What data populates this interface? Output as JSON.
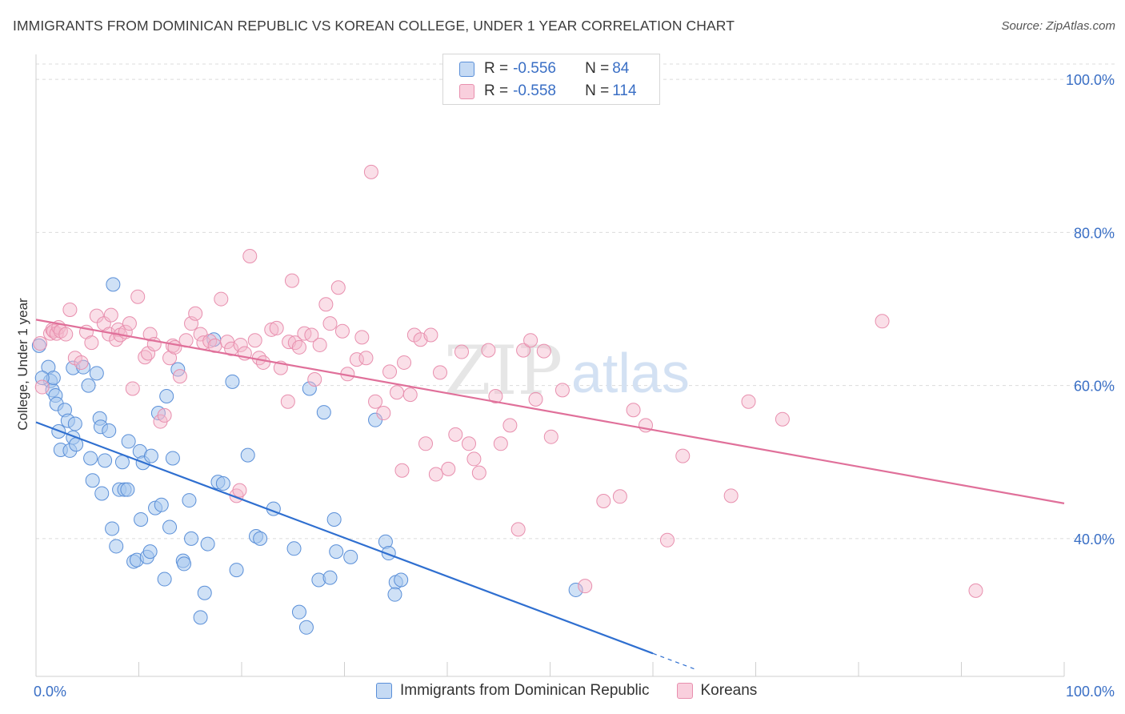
{
  "header": {
    "title": "IMMIGRANTS FROM DOMINICAN REPUBLIC VS KOREAN COLLEGE, UNDER 1 YEAR CORRELATION CHART",
    "source": "Source: ZipAtlas.com"
  },
  "legend": {
    "rows": [
      {
        "r_label": "R = ",
        "r_value": "-0.556",
        "n_label": "N = ",
        "n_value": "84"
      },
      {
        "r_label": "R = ",
        "r_value": "-0.558",
        "n_label": "N = ",
        "n_value": "114"
      }
    ]
  },
  "watermark": {
    "zip": "ZIP",
    "atlas": "atlas"
  },
  "colors": {
    "blue_fill": "#a8c8ee",
    "blue_stroke": "#5a8fd8",
    "blue_line": "#2f6fd0",
    "pink_fill": "#f5b7cb",
    "pink_stroke": "#e88fae",
    "pink_line": "#e0709a",
    "axis_text": "#3a6fc5",
    "grid": "#dcdcdc"
  },
  "chart_data": {
    "type": "scatter",
    "title": "IMMIGRANTS FROM DOMINICAN REPUBLIC VS KOREAN COLLEGE, UNDER 1 YEAR CORRELATION CHART",
    "xlabel": "",
    "ylabel": "College, Under 1 year",
    "xlim": [
      0,
      100
    ],
    "ylim": [
      22,
      102
    ],
    "x_tick_labels": [
      "0.0%",
      "100.0%"
    ],
    "y_ticks": [
      40,
      60,
      80,
      100
    ],
    "y_tick_labels": [
      "40.0%",
      "60.0%",
      "80.0%",
      "100.0%"
    ],
    "grid": true,
    "legend_position": "top-center",
    "series": [
      {
        "name": "Immigrants from Dominican Republic",
        "color": "#a8c8ee",
        "r": -0.556,
        "n": 84,
        "trend": {
          "x0": 0,
          "y0": 55.2,
          "x1": 60,
          "y1": 25.0,
          "dash_to_x": 64
        },
        "points": [
          [
            0.3,
            65.2
          ],
          [
            1.2,
            62.4
          ],
          [
            1.4,
            60.6
          ],
          [
            1.6,
            59.4
          ],
          [
            1.7,
            61.0
          ],
          [
            1.9,
            58.7
          ],
          [
            2.0,
            57.6
          ],
          [
            2.2,
            54.0
          ],
          [
            2.4,
            51.6
          ],
          [
            2.8,
            56.8
          ],
          [
            3.1,
            55.4
          ],
          [
            3.3,
            51.5
          ],
          [
            3.6,
            53.2
          ],
          [
            3.8,
            55.0
          ],
          [
            3.9,
            52.3
          ],
          [
            3.6,
            62.3
          ],
          [
            4.6,
            62.4
          ],
          [
            5.1,
            60.0
          ],
          [
            5.3,
            50.5
          ],
          [
            5.5,
            47.6
          ],
          [
            5.9,
            61.6
          ],
          [
            6.2,
            55.7
          ],
          [
            6.3,
            54.6
          ],
          [
            6.4,
            45.9
          ],
          [
            6.7,
            50.2
          ],
          [
            7.1,
            54.1
          ],
          [
            7.4,
            41.3
          ],
          [
            7.5,
            73.2
          ],
          [
            7.8,
            39.0
          ],
          [
            8.1,
            46.4
          ],
          [
            8.4,
            50.0
          ],
          [
            8.6,
            46.4
          ],
          [
            8.9,
            46.4
          ],
          [
            9.0,
            52.7
          ],
          [
            9.5,
            37.0
          ],
          [
            9.8,
            37.2
          ],
          [
            10.1,
            51.4
          ],
          [
            10.2,
            42.5
          ],
          [
            10.4,
            49.9
          ],
          [
            10.8,
            37.6
          ],
          [
            11.1,
            38.3
          ],
          [
            11.2,
            50.8
          ],
          [
            11.6,
            44.0
          ],
          [
            11.9,
            56.4
          ],
          [
            12.2,
            44.4
          ],
          [
            12.5,
            34.7
          ],
          [
            12.7,
            58.6
          ],
          [
            13.0,
            41.5
          ],
          [
            13.3,
            50.5
          ],
          [
            13.8,
            62.1
          ],
          [
            14.3,
            37.1
          ],
          [
            14.4,
            36.7
          ],
          [
            14.9,
            45.0
          ],
          [
            15.1,
            40.0
          ],
          [
            16.0,
            29.7
          ],
          [
            16.4,
            32.9
          ],
          [
            16.7,
            39.3
          ],
          [
            17.3,
            66.0
          ],
          [
            17.7,
            47.4
          ],
          [
            18.2,
            47.2
          ],
          [
            19.1,
            60.5
          ],
          [
            19.5,
            35.9
          ],
          [
            20.6,
            50.9
          ],
          [
            21.4,
            40.3
          ],
          [
            21.8,
            40.0
          ],
          [
            23.1,
            43.9
          ],
          [
            25.1,
            38.7
          ],
          [
            25.6,
            30.4
          ],
          [
            26.3,
            28.4
          ],
          [
            26.6,
            59.6
          ],
          [
            27.5,
            34.6
          ],
          [
            28.0,
            56.5
          ],
          [
            28.6,
            34.9
          ],
          [
            29.0,
            42.5
          ],
          [
            29.2,
            38.3
          ],
          [
            30.6,
            37.6
          ],
          [
            33.0,
            55.5
          ],
          [
            34.0,
            39.6
          ],
          [
            34.3,
            38.1
          ],
          [
            35.0,
            34.3
          ],
          [
            34.9,
            32.7
          ],
          [
            35.5,
            34.6
          ],
          [
            52.5,
            33.3
          ],
          [
            0.6,
            61.0
          ]
        ]
      },
      {
        "name": "Koreans",
        "color": "#f5b7cb",
        "r": -0.558,
        "n": 114,
        "trend": {
          "x0": 0,
          "y0": 68.6,
          "x1": 100,
          "y1": 44.6
        },
        "points": [
          [
            0.4,
            65.5
          ],
          [
            0.6,
            59.8
          ],
          [
            1.4,
            66.8
          ],
          [
            1.6,
            67.3
          ],
          [
            1.7,
            67.1
          ],
          [
            2.0,
            66.8
          ],
          [
            2.2,
            67.6
          ],
          [
            2.4,
            67.1
          ],
          [
            2.9,
            66.7
          ],
          [
            3.3,
            69.9
          ],
          [
            3.8,
            63.6
          ],
          [
            4.4,
            63.0
          ],
          [
            4.9,
            67.0
          ],
          [
            5.4,
            65.6
          ],
          [
            5.9,
            69.1
          ],
          [
            6.6,
            68.1
          ],
          [
            7.1,
            66.7
          ],
          [
            7.3,
            69.2
          ],
          [
            7.8,
            66.0
          ],
          [
            8.0,
            67.3
          ],
          [
            8.2,
            66.6
          ],
          [
            8.7,
            67.0
          ],
          [
            9.1,
            68.1
          ],
          [
            9.4,
            59.6
          ],
          [
            9.9,
            71.6
          ],
          [
            10.6,
            63.7
          ],
          [
            10.9,
            64.2
          ],
          [
            11.1,
            66.7
          ],
          [
            11.5,
            65.4
          ],
          [
            12.1,
            55.3
          ],
          [
            12.5,
            56.1
          ],
          [
            13.0,
            63.6
          ],
          [
            13.3,
            65.2
          ],
          [
            13.5,
            65.0
          ],
          [
            14.0,
            61.2
          ],
          [
            14.6,
            65.9
          ],
          [
            15.1,
            68.1
          ],
          [
            15.5,
            69.4
          ],
          [
            16.0,
            66.7
          ],
          [
            16.3,
            65.6
          ],
          [
            16.9,
            65.8
          ],
          [
            17.4,
            65.2
          ],
          [
            18.0,
            71.3
          ],
          [
            18.6,
            65.7
          ],
          [
            19.0,
            64.8
          ],
          [
            19.5,
            45.6
          ],
          [
            19.8,
            46.3
          ],
          [
            19.9,
            65.3
          ],
          [
            20.3,
            64.2
          ],
          [
            20.8,
            76.9
          ],
          [
            21.3,
            65.9
          ],
          [
            21.7,
            63.6
          ],
          [
            22.1,
            63.0
          ],
          [
            22.9,
            67.3
          ],
          [
            23.4,
            67.5
          ],
          [
            23.8,
            62.3
          ],
          [
            24.5,
            57.9
          ],
          [
            24.6,
            65.7
          ],
          [
            24.9,
            73.7
          ],
          [
            25.2,
            65.6
          ],
          [
            25.6,
            65.0
          ],
          [
            26.1,
            66.8
          ],
          [
            26.8,
            66.6
          ],
          [
            27.1,
            60.8
          ],
          [
            27.6,
            65.3
          ],
          [
            28.2,
            70.6
          ],
          [
            28.6,
            68.1
          ],
          [
            29.4,
            72.8
          ],
          [
            29.8,
            67.1
          ],
          [
            30.3,
            61.5
          ],
          [
            31.2,
            63.4
          ],
          [
            31.7,
            66.3
          ],
          [
            32.1,
            63.6
          ],
          [
            32.6,
            87.9
          ],
          [
            33.0,
            57.9
          ],
          [
            33.8,
            56.4
          ],
          [
            34.4,
            61.8
          ],
          [
            35.1,
            59.1
          ],
          [
            35.6,
            48.9
          ],
          [
            35.8,
            63.0
          ],
          [
            36.4,
            58.8
          ],
          [
            36.8,
            66.6
          ],
          [
            37.4,
            66.0
          ],
          [
            37.9,
            52.4
          ],
          [
            38.4,
            66.6
          ],
          [
            38.9,
            48.4
          ],
          [
            39.3,
            61.7
          ],
          [
            40.1,
            49.1
          ],
          [
            40.8,
            53.6
          ],
          [
            41.4,
            64.4
          ],
          [
            42.1,
            52.4
          ],
          [
            42.6,
            50.4
          ],
          [
            43.1,
            48.6
          ],
          [
            44.0,
            64.6
          ],
          [
            44.7,
            58.6
          ],
          [
            45.2,
            52.4
          ],
          [
            46.1,
            54.8
          ],
          [
            46.9,
            41.2
          ],
          [
            47.4,
            64.6
          ],
          [
            48.1,
            65.9
          ],
          [
            48.6,
            58.2
          ],
          [
            49.4,
            64.5
          ],
          [
            50.1,
            53.3
          ],
          [
            51.2,
            59.4
          ],
          [
            53.4,
            33.8
          ],
          [
            55.2,
            44.9
          ],
          [
            56.8,
            45.5
          ],
          [
            58.1,
            56.8
          ],
          [
            59.3,
            54.8
          ],
          [
            61.4,
            39.8
          ],
          [
            62.9,
            50.8
          ],
          [
            67.6,
            45.6
          ],
          [
            69.3,
            57.9
          ],
          [
            72.6,
            55.6
          ],
          [
            82.3,
            68.4
          ],
          [
            91.4,
            33.2
          ]
        ]
      }
    ]
  },
  "axis": {
    "x_left_label": "0.0%",
    "x_right_label": "100.0%",
    "y_title": "College, Under 1 year"
  },
  "bottom_legend": {
    "items": [
      "Immigrants from Dominican Republic",
      "Koreans"
    ]
  }
}
